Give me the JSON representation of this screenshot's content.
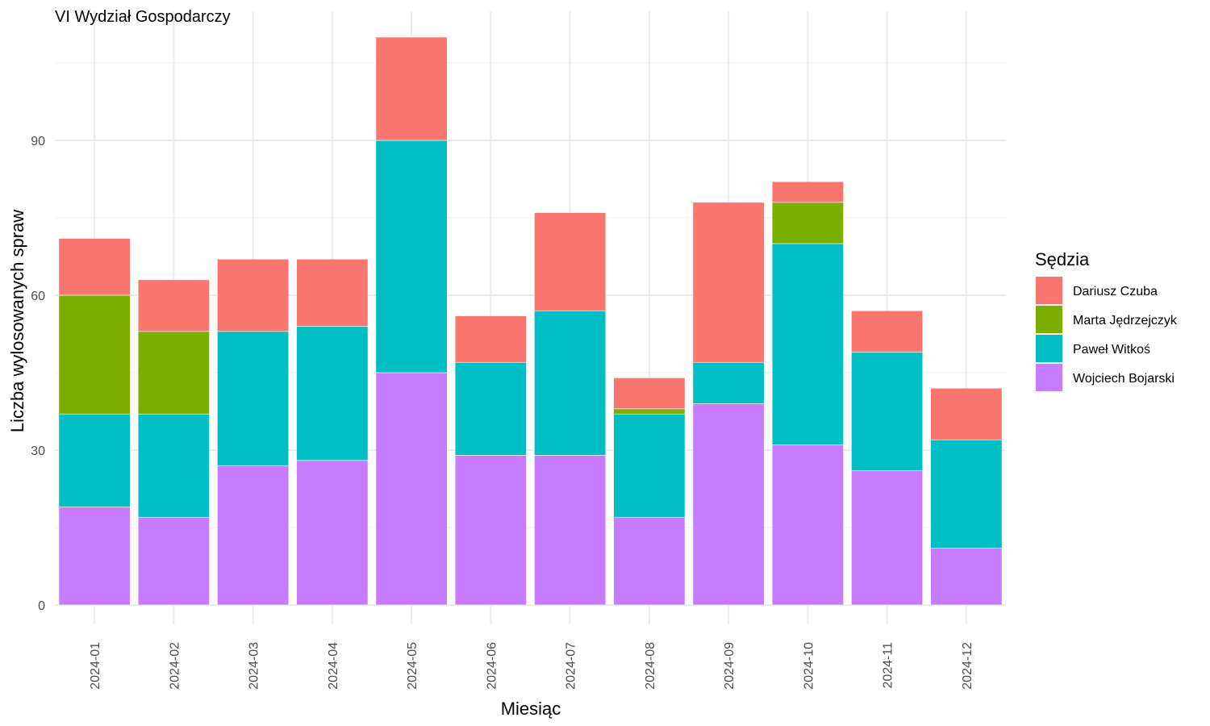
{
  "chart_data": {
    "type": "bar",
    "stacked": true,
    "title": "VI Wydział Gospodarczy",
    "xlabel": "Miesiąc",
    "ylabel": "Liczba wylosowanych spraw",
    "ylim": [
      0,
      115
    ],
    "yticks": [
      0,
      30,
      60,
      90
    ],
    "grid": true,
    "legend_title": "Sędzia",
    "legend_position": "right",
    "categories": [
      "2024-01",
      "2024-02",
      "2024-03",
      "2024-04",
      "2024-05",
      "2024-06",
      "2024-07",
      "2024-08",
      "2024-09",
      "2024-10",
      "2024-11",
      "2024-12"
    ],
    "series": [
      {
        "name": "Wojciech Bojarski",
        "color": "#C77CFF",
        "values": [
          19,
          17,
          27,
          28,
          45,
          29,
          29,
          17,
          39,
          31,
          26,
          11
        ]
      },
      {
        "name": "Paweł Witkoś",
        "color": "#00BFC4",
        "values": [
          18,
          20,
          26,
          26,
          45,
          18,
          28,
          20,
          8,
          39,
          23,
          21
        ]
      },
      {
        "name": "Marta Jędrzejczyk",
        "color": "#7CAE00",
        "values": [
          23,
          16,
          0,
          0,
          0,
          0,
          0,
          1,
          0,
          8,
          0,
          0
        ]
      },
      {
        "name": "Dariusz Czuba",
        "color": "#F8766D",
        "values": [
          11,
          10,
          14,
          13,
          20,
          9,
          19,
          6,
          31,
          4,
          8,
          10
        ]
      }
    ],
    "legend_order": [
      "Dariusz Czuba",
      "Marta Jędrzejczyk",
      "Paweł Witkoś",
      "Wojciech Bojarski"
    ]
  }
}
